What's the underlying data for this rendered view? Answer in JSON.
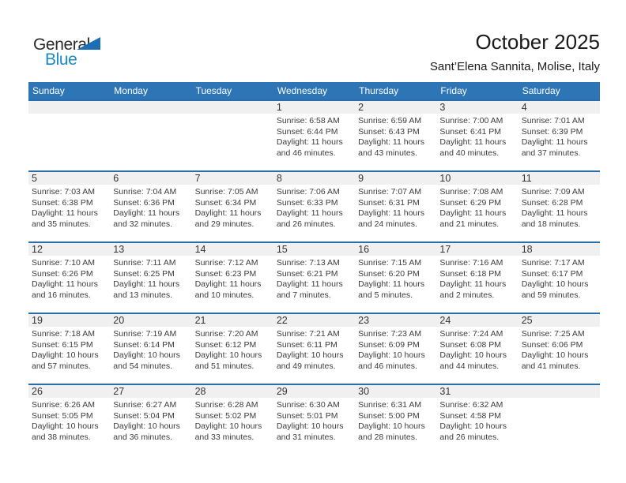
{
  "logo": {
    "part1": "General",
    "part2": "Blue"
  },
  "header": {
    "title": "October 2025",
    "subtitle": "Sant’Elena Sannita, Molise, Italy"
  },
  "colors": {
    "header_bg": "#2E75B6",
    "header_text": "#FFFFFF",
    "row_border": "#2A6DAD",
    "day_strip_bg": "#F0F0F0",
    "logo_blue": "#1C87C9",
    "logo_triangle": "#1C6FB5"
  },
  "calendar": {
    "weekdays": [
      "Sunday",
      "Monday",
      "Tuesday",
      "Wednesday",
      "Thursday",
      "Friday",
      "Saturday"
    ],
    "weeks": [
      [
        null,
        null,
        null,
        {
          "day": "1",
          "sunrise": "Sunrise: 6:58 AM",
          "sunset": "Sunset: 6:44 PM",
          "daylight": "Daylight: 11 hours and 46 minutes."
        },
        {
          "day": "2",
          "sunrise": "Sunrise: 6:59 AM",
          "sunset": "Sunset: 6:43 PM",
          "daylight": "Daylight: 11 hours and 43 minutes."
        },
        {
          "day": "3",
          "sunrise": "Sunrise: 7:00 AM",
          "sunset": "Sunset: 6:41 PM",
          "daylight": "Daylight: 11 hours and 40 minutes."
        },
        {
          "day": "4",
          "sunrise": "Sunrise: 7:01 AM",
          "sunset": "Sunset: 6:39 PM",
          "daylight": "Daylight: 11 hours and 37 minutes."
        }
      ],
      [
        {
          "day": "5",
          "sunrise": "Sunrise: 7:03 AM",
          "sunset": "Sunset: 6:38 PM",
          "daylight": "Daylight: 11 hours and 35 minutes."
        },
        {
          "day": "6",
          "sunrise": "Sunrise: 7:04 AM",
          "sunset": "Sunset: 6:36 PM",
          "daylight": "Daylight: 11 hours and 32 minutes."
        },
        {
          "day": "7",
          "sunrise": "Sunrise: 7:05 AM",
          "sunset": "Sunset: 6:34 PM",
          "daylight": "Daylight: 11 hours and 29 minutes."
        },
        {
          "day": "8",
          "sunrise": "Sunrise: 7:06 AM",
          "sunset": "Sunset: 6:33 PM",
          "daylight": "Daylight: 11 hours and 26 minutes."
        },
        {
          "day": "9",
          "sunrise": "Sunrise: 7:07 AM",
          "sunset": "Sunset: 6:31 PM",
          "daylight": "Daylight: 11 hours and 24 minutes."
        },
        {
          "day": "10",
          "sunrise": "Sunrise: 7:08 AM",
          "sunset": "Sunset: 6:29 PM",
          "daylight": "Daylight: 11 hours and 21 minutes."
        },
        {
          "day": "11",
          "sunrise": "Sunrise: 7:09 AM",
          "sunset": "Sunset: 6:28 PM",
          "daylight": "Daylight: 11 hours and 18 minutes."
        }
      ],
      [
        {
          "day": "12",
          "sunrise": "Sunrise: 7:10 AM",
          "sunset": "Sunset: 6:26 PM",
          "daylight": "Daylight: 11 hours and 16 minutes."
        },
        {
          "day": "13",
          "sunrise": "Sunrise: 7:11 AM",
          "sunset": "Sunset: 6:25 PM",
          "daylight": "Daylight: 11 hours and 13 minutes."
        },
        {
          "day": "14",
          "sunrise": "Sunrise: 7:12 AM",
          "sunset": "Sunset: 6:23 PM",
          "daylight": "Daylight: 11 hours and 10 minutes."
        },
        {
          "day": "15",
          "sunrise": "Sunrise: 7:13 AM",
          "sunset": "Sunset: 6:21 PM",
          "daylight": "Daylight: 11 hours and 7 minutes."
        },
        {
          "day": "16",
          "sunrise": "Sunrise: 7:15 AM",
          "sunset": "Sunset: 6:20 PM",
          "daylight": "Daylight: 11 hours and 5 minutes."
        },
        {
          "day": "17",
          "sunrise": "Sunrise: 7:16 AM",
          "sunset": "Sunset: 6:18 PM",
          "daylight": "Daylight: 11 hours and 2 minutes."
        },
        {
          "day": "18",
          "sunrise": "Sunrise: 7:17 AM",
          "sunset": "Sunset: 6:17 PM",
          "daylight": "Daylight: 10 hours and 59 minutes."
        }
      ],
      [
        {
          "day": "19",
          "sunrise": "Sunrise: 7:18 AM",
          "sunset": "Sunset: 6:15 PM",
          "daylight": "Daylight: 10 hours and 57 minutes."
        },
        {
          "day": "20",
          "sunrise": "Sunrise: 7:19 AM",
          "sunset": "Sunset: 6:14 PM",
          "daylight": "Daylight: 10 hours and 54 minutes."
        },
        {
          "day": "21",
          "sunrise": "Sunrise: 7:20 AM",
          "sunset": "Sunset: 6:12 PM",
          "daylight": "Daylight: 10 hours and 51 minutes."
        },
        {
          "day": "22",
          "sunrise": "Sunrise: 7:21 AM",
          "sunset": "Sunset: 6:11 PM",
          "daylight": "Daylight: 10 hours and 49 minutes."
        },
        {
          "day": "23",
          "sunrise": "Sunrise: 7:23 AM",
          "sunset": "Sunset: 6:09 PM",
          "daylight": "Daylight: 10 hours and 46 minutes."
        },
        {
          "day": "24",
          "sunrise": "Sunrise: 7:24 AM",
          "sunset": "Sunset: 6:08 PM",
          "daylight": "Daylight: 10 hours and 44 minutes."
        },
        {
          "day": "25",
          "sunrise": "Sunrise: 7:25 AM",
          "sunset": "Sunset: 6:06 PM",
          "daylight": "Daylight: 10 hours and 41 minutes."
        }
      ],
      [
        {
          "day": "26",
          "sunrise": "Sunrise: 6:26 AM",
          "sunset": "Sunset: 5:05 PM",
          "daylight": "Daylight: 10 hours and 38 minutes."
        },
        {
          "day": "27",
          "sunrise": "Sunrise: 6:27 AM",
          "sunset": "Sunset: 5:04 PM",
          "daylight": "Daylight: 10 hours and 36 minutes."
        },
        {
          "day": "28",
          "sunrise": "Sunrise: 6:28 AM",
          "sunset": "Sunset: 5:02 PM",
          "daylight": "Daylight: 10 hours and 33 minutes."
        },
        {
          "day": "29",
          "sunrise": "Sunrise: 6:30 AM",
          "sunset": "Sunset: 5:01 PM",
          "daylight": "Daylight: 10 hours and 31 minutes."
        },
        {
          "day": "30",
          "sunrise": "Sunrise: 6:31 AM",
          "sunset": "Sunset: 5:00 PM",
          "daylight": "Daylight: 10 hours and 28 minutes."
        },
        {
          "day": "31",
          "sunrise": "Sunrise: 6:32 AM",
          "sunset": "Sunset: 4:58 PM",
          "daylight": "Daylight: 10 hours and 26 minutes."
        },
        null
      ]
    ]
  }
}
